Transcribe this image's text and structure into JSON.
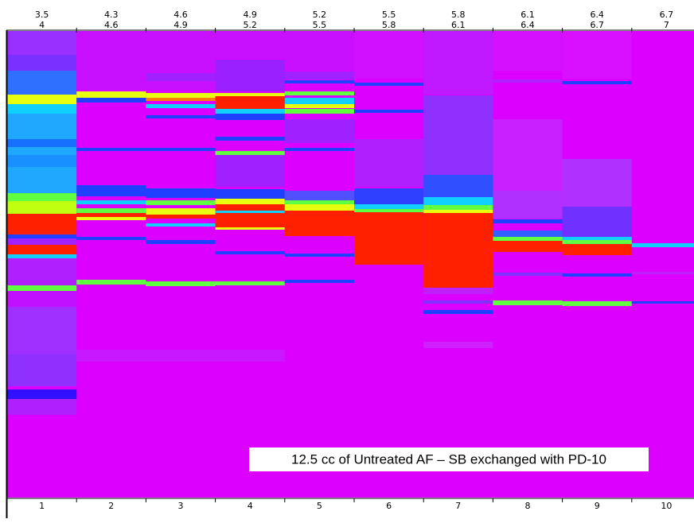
{
  "lanes": [
    {
      "ph_start": "3.5",
      "ph_end": "4",
      "number": "1"
    },
    {
      "ph_start": "4.3",
      "ph_end": "4.6",
      "number": "2"
    },
    {
      "ph_start": "4.6",
      "ph_end": "4.9",
      "number": "3"
    },
    {
      "ph_start": "4.9",
      "ph_end": "5.2",
      "number": "4"
    },
    {
      "ph_start": "5.2",
      "ph_end": "5.5",
      "number": "5"
    },
    {
      "ph_start": "5.5",
      "ph_end": "5.8",
      "number": "6"
    },
    {
      "ph_start": "5.8",
      "ph_end": "6.1",
      "number": "7"
    },
    {
      "ph_start": "6.1",
      "ph_end": "6.4",
      "number": "8"
    },
    {
      "ph_start": "6.4",
      "ph_end": "6.7",
      "number": "9"
    },
    {
      "ph_start": "6.7",
      "ph_end": "7",
      "number": "10"
    }
  ],
  "caption": "12.5 cc of Untreated AF – SB exchanged with PD-10"
}
